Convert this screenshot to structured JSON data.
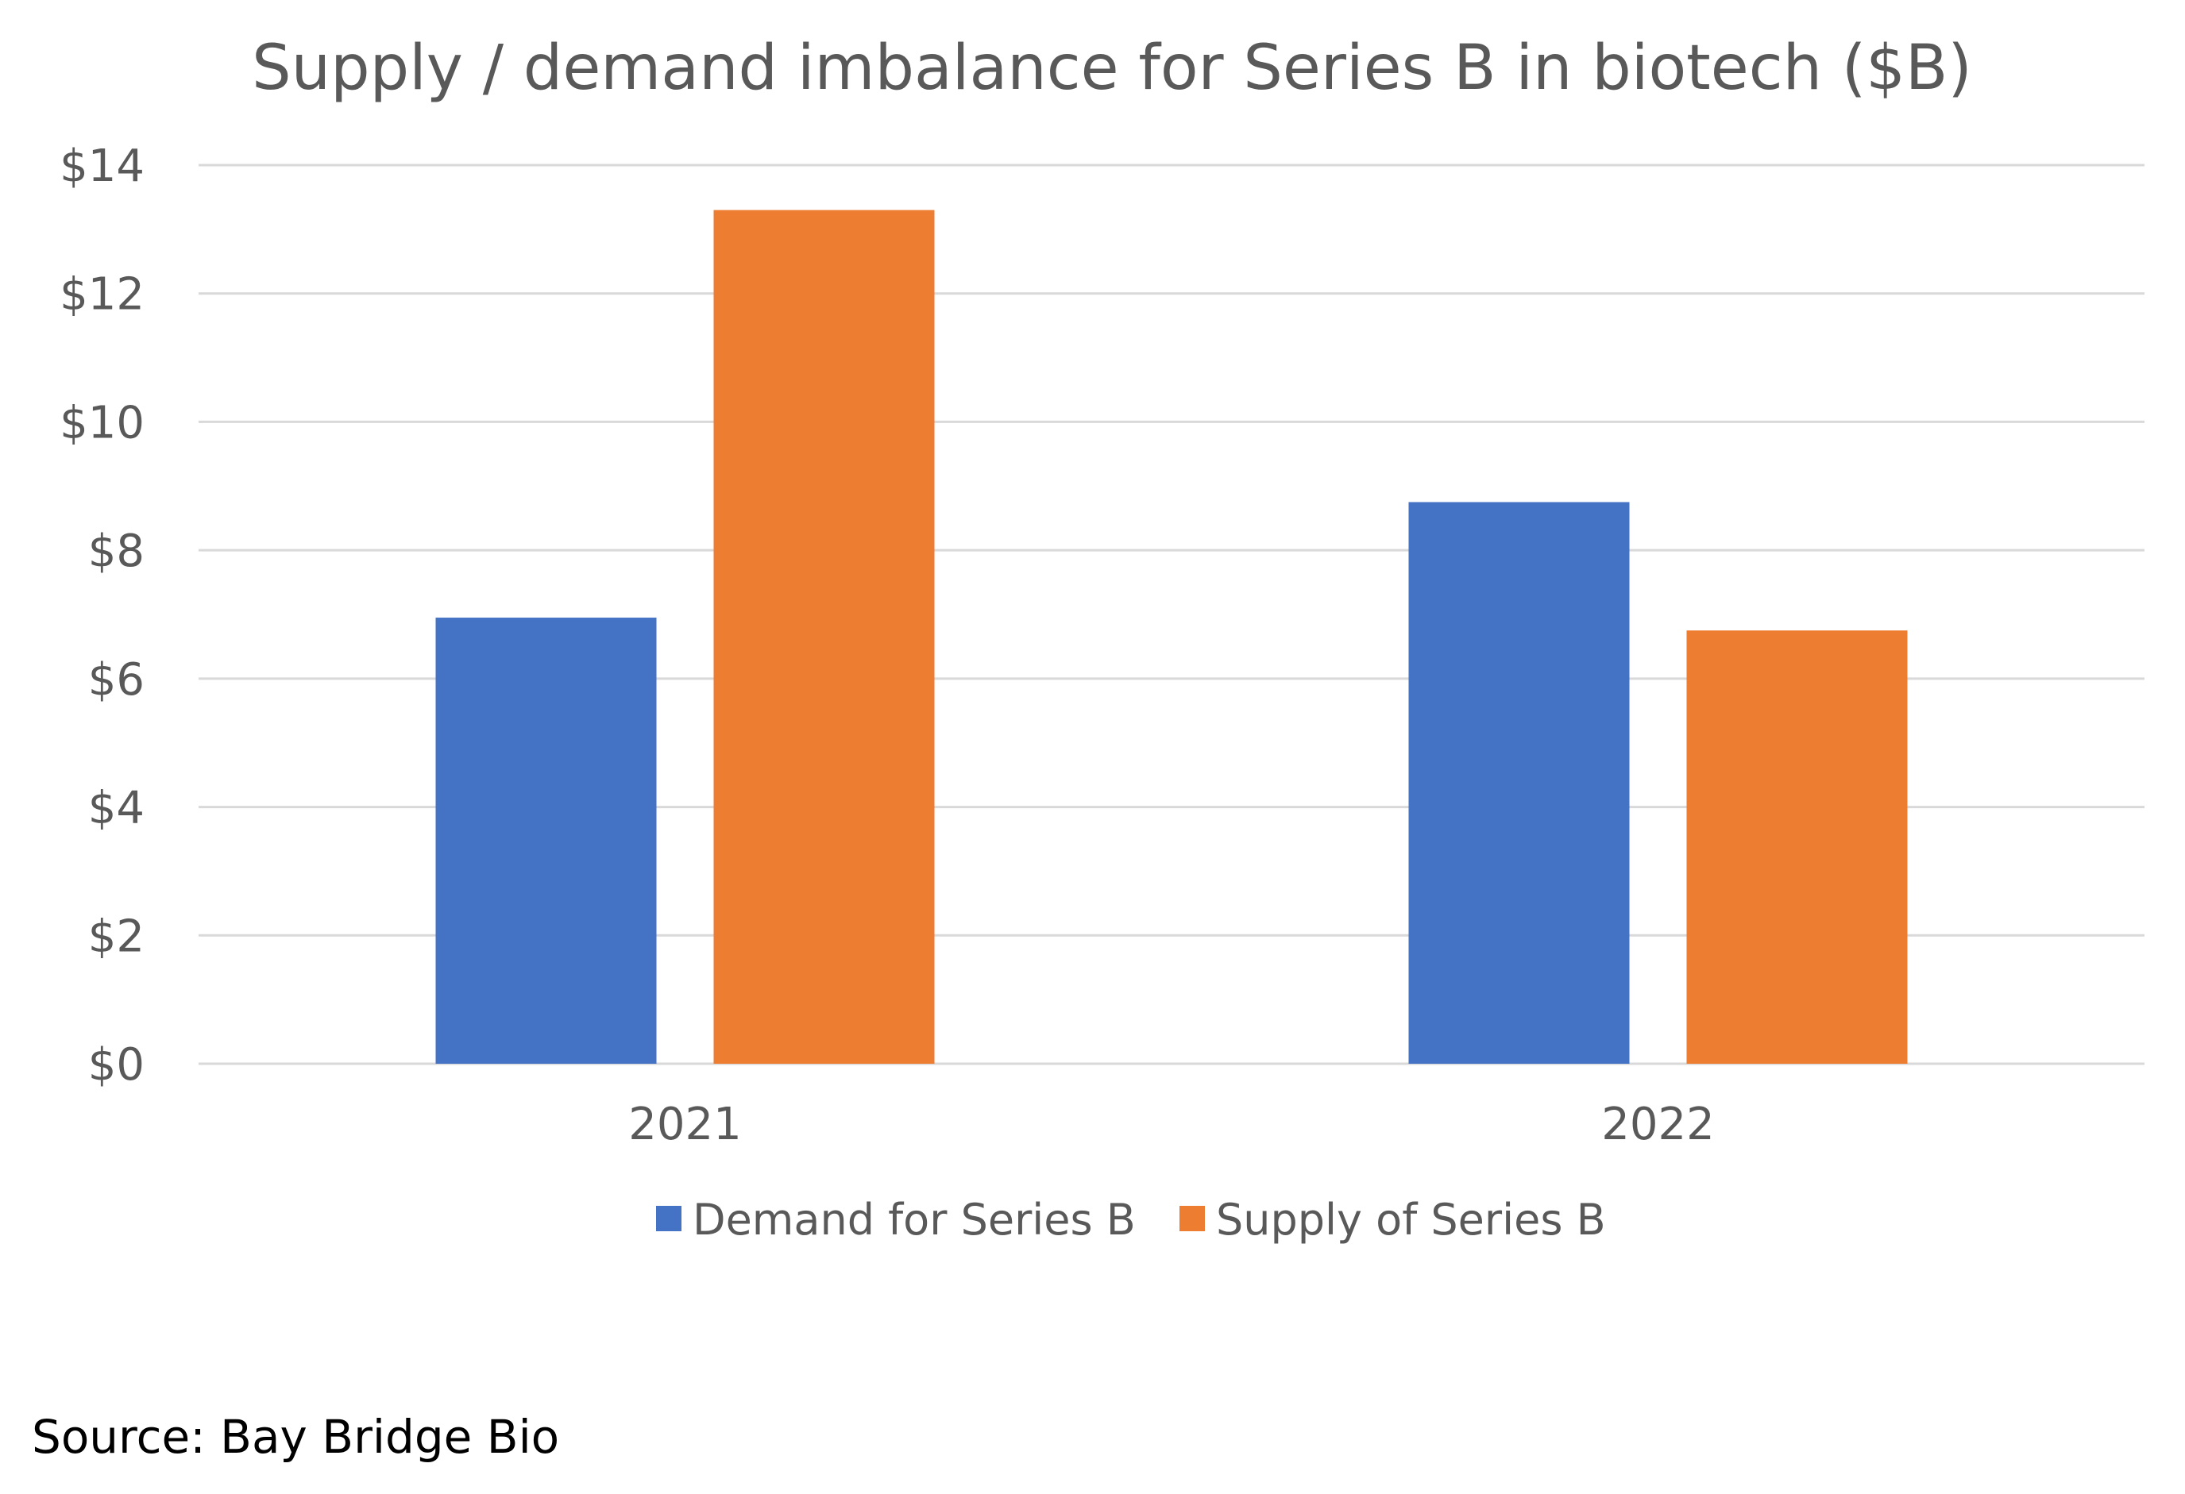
{
  "chart_data": {
    "type": "bar",
    "title": "Supply / demand imbalance for Series B in biotech ($B)",
    "categories": [
      "2021",
      "2022"
    ],
    "series": [
      {
        "name": "Demand for Series B",
        "values": [
          6.95,
          8.75
        ],
        "color": "#4472C4"
      },
      {
        "name": "Supply of Series B",
        "values": [
          13.3,
          6.75
        ],
        "color": "#ED7D31"
      }
    ],
    "ylim": [
      0,
      14
    ],
    "yticks": [
      0,
      2,
      4,
      6,
      8,
      10,
      12,
      14
    ],
    "ytick_labels": [
      "$0",
      "$2",
      "$4",
      "$6",
      "$8",
      "$10",
      "$12",
      "$14"
    ],
    "grid": true,
    "legend_position": "bottom-center",
    "gridline_color": "#D9D9D9"
  },
  "source": "Source: Bay Bridge Bio"
}
